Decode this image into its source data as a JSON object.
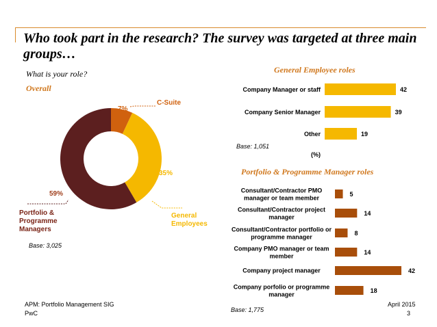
{
  "header": {
    "title": "Who took part in the research? The survey was targeted at three main groups…",
    "subtitle": "What is your role?"
  },
  "overall": {
    "heading": "Overall",
    "base": "Base: 3,025"
  },
  "general": {
    "heading": "General Employee roles",
    "base": "Base: 1,051",
    "unit": "(%)"
  },
  "ppm": {
    "heading": "Portfolio & Programme Manager roles",
    "base": "Base: 1,775"
  },
  "footer": {
    "source": "APM: Portfolio Management SIG",
    "org": "PwC",
    "date": "April 2015",
    "page": "3"
  },
  "chart_data": [
    {
      "type": "pie",
      "variant": "donut",
      "labels": [
        "C-Suite",
        "General Employees",
        "Portfolio & Programme Managers"
      ],
      "values": [
        7,
        35,
        59
      ],
      "value_labels": [
        "7%",
        "35%",
        "59%"
      ],
      "colors": [
        "#D0610E",
        "#F5B800",
        "#5C1F1F"
      ]
    },
    {
      "type": "bar",
      "orientation": "horizontal",
      "categories": [
        "Company Manager or staff",
        "Company Senior Manager",
        "Other"
      ],
      "values": [
        42,
        39,
        19
      ],
      "color": "#F5B800",
      "xlabel": "(%)"
    },
    {
      "type": "bar",
      "orientation": "horizontal",
      "categories": [
        "Consultant/Contractor PMO manager or team member",
        "Consultant/Contractor project manager",
        "Consultant/Contractor portfolio or programme manager",
        "Company PMO manager or team member",
        "Company project manager",
        "Company porfolio or programme manager"
      ],
      "values": [
        5,
        14,
        8,
        14,
        42,
        18
      ],
      "color": "#A84E0A"
    }
  ]
}
